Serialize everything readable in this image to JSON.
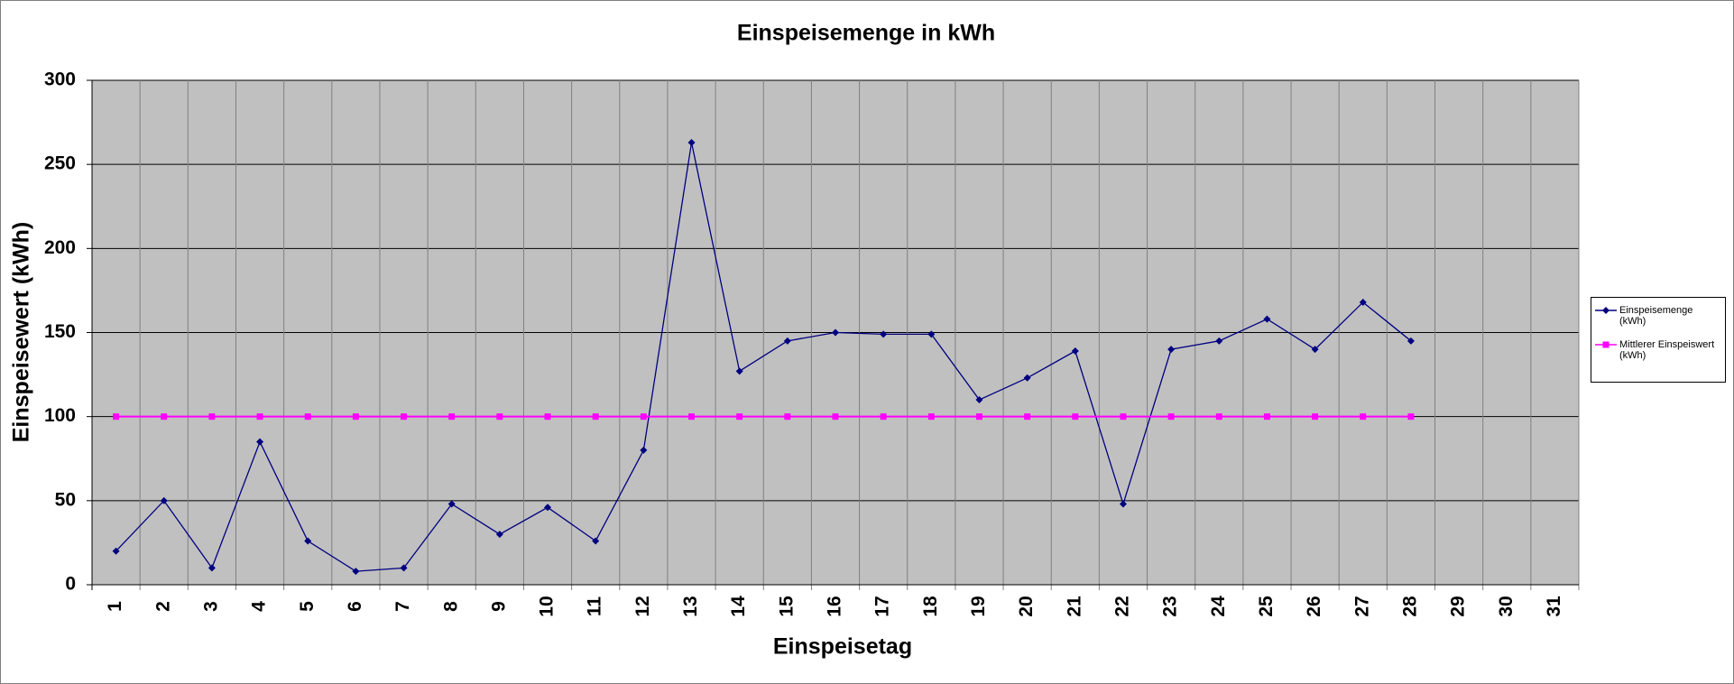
{
  "chart_data": {
    "type": "line",
    "title": "Einspeisemenge in kWh",
    "x_label": "Einspeisetag",
    "y_label": "Einspeisewert  (kWh)",
    "categories": [
      "1",
      "2",
      "3",
      "4",
      "5",
      "6",
      "7",
      "8",
      "9",
      "10",
      "11",
      "12",
      "13",
      "14",
      "15",
      "16",
      "17",
      "18",
      "19",
      "20",
      "21",
      "22",
      "23",
      "24",
      "25",
      "26",
      "27",
      "28",
      "29",
      "30",
      "31"
    ],
    "series": [
      {
        "name": "Einspeisemenge (kWh)",
        "color": "#000080",
        "marker": "diamond",
        "values": [
          20,
          50,
          10,
          85,
          26,
          8,
          10,
          48,
          30,
          46,
          26,
          80,
          263,
          127,
          145,
          150,
          149,
          149,
          110,
          123,
          139,
          48,
          140,
          145,
          158,
          140,
          168,
          145,
          null,
          null,
          null
        ]
      },
      {
        "name": "Mittlerer Einspeiswert (kWh)",
        "color": "#ff00ff",
        "marker": "square",
        "values": [
          100,
          100,
          100,
          100,
          100,
          100,
          100,
          100,
          100,
          100,
          100,
          100,
          100,
          100,
          100,
          100,
          100,
          100,
          100,
          100,
          100,
          100,
          100,
          100,
          100,
          100,
          100,
          100,
          null,
          null,
          null
        ]
      }
    ],
    "ylim": [
      0,
      300
    ],
    "yticks": [
      0,
      50,
      100,
      150,
      200,
      250,
      300
    ],
    "grid": true,
    "legend": "right"
  }
}
